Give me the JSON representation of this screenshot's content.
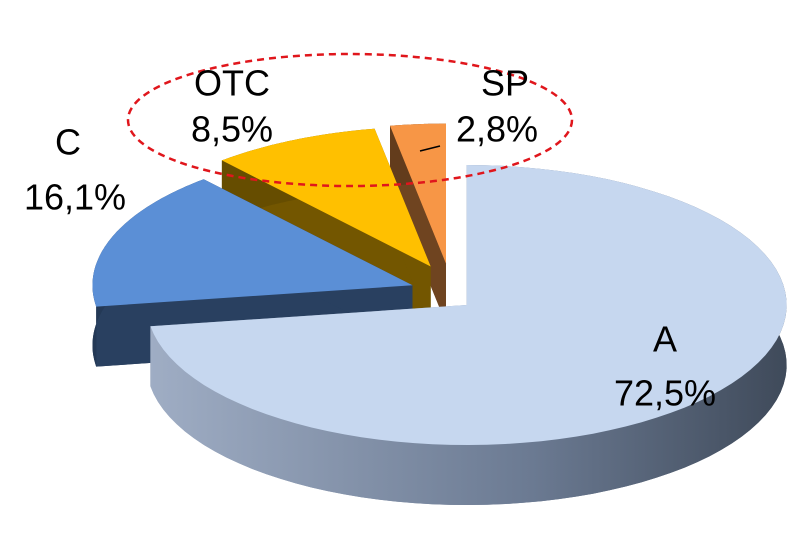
{
  "chart_data": {
    "type": "pie",
    "categories": [
      "A",
      "C",
      "OTC",
      "SP"
    ],
    "values": [
      72.5,
      16.1,
      8.5,
      2.8
    ],
    "value_labels": [
      "72,5%",
      "16,1%",
      "8,5%",
      "2,8%"
    ],
    "colors": [
      "#c6d7ef",
      "#5b8fd6",
      "#ffc000",
      "#f79646"
    ]
  }
}
